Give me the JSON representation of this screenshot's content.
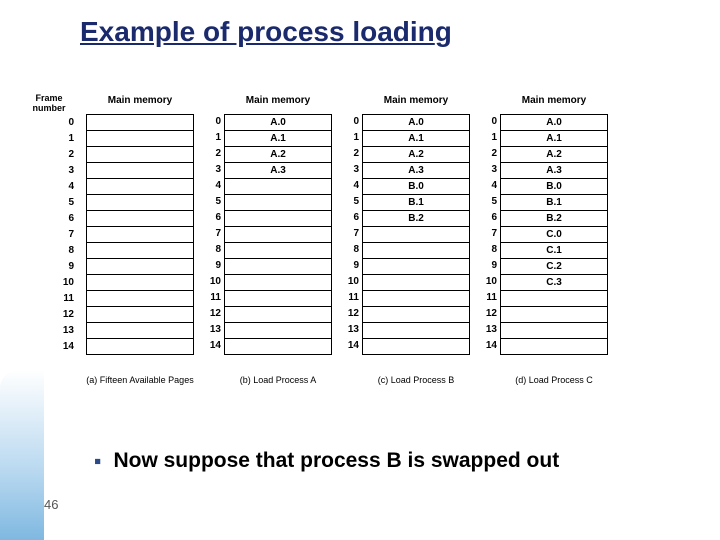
{
  "title_parts": [
    "Example of process loadin",
    "g"
  ],
  "frame_label": {
    "line1": "Frame",
    "line2": "number"
  },
  "frame_numbers": [
    "0",
    "1",
    "2",
    "3",
    "4",
    "5",
    "6",
    "7",
    "8",
    "9",
    "10",
    "11",
    "12",
    "13",
    "14"
  ],
  "panels": [
    {
      "header": "Main memory",
      "caption": "(a) Fifteen Available Pages",
      "cells": [
        "",
        "",
        "",
        "",
        "",
        "",
        "",
        "",
        "",
        "",
        "",
        "",
        "",
        "",
        ""
      ]
    },
    {
      "header": "Main memory",
      "caption": "(b) Load Process A",
      "cells": [
        "A.0",
        "A.1",
        "A.2",
        "A.3",
        "",
        "",
        "",
        "",
        "",
        "",
        "",
        "",
        "",
        "",
        ""
      ]
    },
    {
      "header": "Main memory",
      "caption": "(c) Load Process B",
      "cells": [
        "A.0",
        "A.1",
        "A.2",
        "A.3",
        "B.0",
        "B.1",
        "B.2",
        "",
        "",
        "",
        "",
        "",
        "",
        "",
        ""
      ]
    },
    {
      "header": "Main memory",
      "caption": "(d) Load Process C",
      "cells": [
        "A.0",
        "A.1",
        "A.2",
        "A.3",
        "B.0",
        "B.1",
        "B.2",
        "C.0",
        "C.1",
        "C.2",
        "C.3",
        "",
        "",
        "",
        ""
      ]
    }
  ],
  "bullet": "Now suppose that process B is swapped out",
  "page_number": "46",
  "colors": {
    "title": "#1a2a6c",
    "bullet_marker": "#2a4a8a",
    "accent_top": "#ffffff",
    "accent_mid": "#b8d8f0",
    "accent_bottom": "#7fb8e0"
  }
}
